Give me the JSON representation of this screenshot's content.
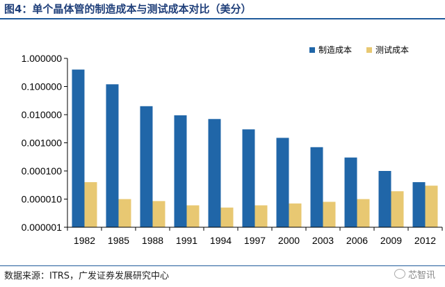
{
  "figure": {
    "title": "图4：单个晶体管的制造成本与测试成本对比（美分）",
    "source": "数据来源：ITRS，广发证券发展研究中心",
    "watermark": "芯智讯"
  },
  "chart_data": {
    "type": "bar",
    "title": "",
    "xlabel": "",
    "ylabel": "",
    "yscale": "log",
    "ylim": [
      1e-06,
      1
    ],
    "yticks": [
      1,
      0.1,
      0.01,
      0.001,
      0.0001,
      1e-05,
      1e-06
    ],
    "ytick_labels": [
      "1.000000",
      "0.100000",
      "0.010000",
      "0.001000",
      "0.000100",
      "0.000010",
      "0.000001"
    ],
    "categories": [
      "1982",
      "1985",
      "1988",
      "1991",
      "1994",
      "1997",
      "2000",
      "2003",
      "2006",
      "2009",
      "2012"
    ],
    "series": [
      {
        "name": "制造成本",
        "color": "#2066a8",
        "values": [
          0.4,
          0.12,
          0.02,
          0.0095,
          0.007,
          0.003,
          0.0015,
          0.0007,
          0.0003,
          0.0001,
          4e-05
        ]
      },
      {
        "name": "测试成本",
        "color": "#e8c872",
        "values": [
          4e-05,
          1e-05,
          8.5e-06,
          6e-06,
          5e-06,
          6e-06,
          7e-06,
          8e-06,
          1e-05,
          1.9e-05,
          3e-05
        ]
      }
    ],
    "legend": "top-right",
    "grid": false
  }
}
